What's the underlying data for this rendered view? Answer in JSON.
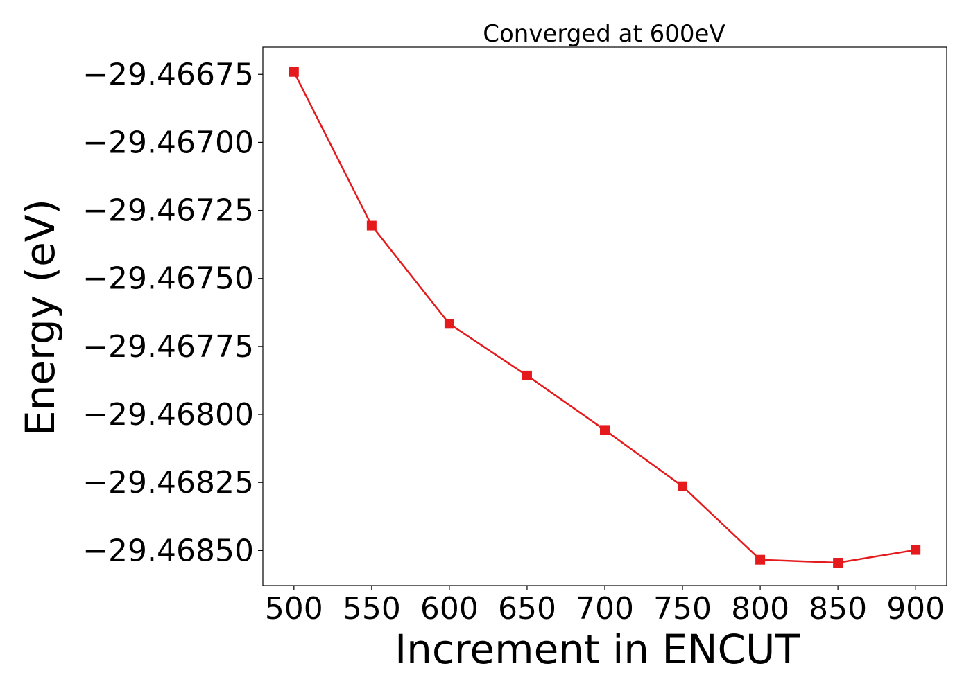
{
  "chart_data": {
    "type": "line",
    "title": "Converged at 600eV",
    "xlabel": "Increment in ENCUT",
    "ylabel": "Energy (eV)",
    "x": [
      500,
      550,
      600,
      650,
      700,
      750,
      800,
      850,
      900
    ],
    "series": [
      {
        "values": [
          -29.466741,
          -29.467306,
          -29.467667,
          -29.467857,
          -29.468057,
          -29.468264,
          -29.468534,
          -29.468545,
          -29.468498
        ],
        "color": "#e41a1c",
        "marker": "square"
      }
    ],
    "xlim": [
      480,
      920
    ],
    "ylim": [
      -29.468629,
      -29.46665
    ],
    "xticks": [
      500,
      550,
      600,
      650,
      700,
      750,
      800,
      850,
      900
    ],
    "xtick_labels": [
      "500",
      "550",
      "600",
      "650",
      "700",
      "750",
      "800",
      "850",
      "900"
    ],
    "yticks": [
      -29.46675,
      -29.467,
      -29.46725,
      -29.4675,
      -29.46775,
      -29.468,
      -29.46825,
      -29.4685
    ],
    "ytick_labels": [
      "−29.46675",
      "−29.46700",
      "−29.46725",
      "−29.46750",
      "−29.46775",
      "−29.46800",
      "−29.46825",
      "−29.46850"
    ],
    "grid": false,
    "legend": "none"
  }
}
